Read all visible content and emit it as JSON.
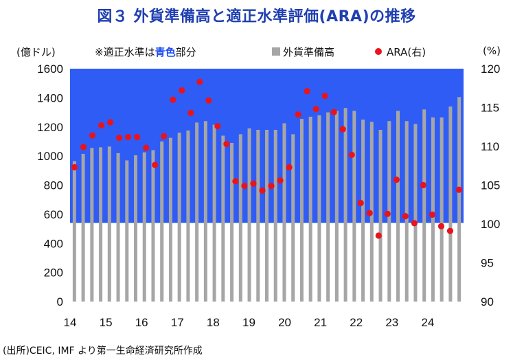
{
  "title": "図３ 外貨準備高と適正水準評価(ARA)の推移",
  "left_unit": "(億ドル)",
  "right_unit": "(%)",
  "note": {
    "prefix": "※適正水準は",
    "highlight": "青色",
    "suffix": "部分"
  },
  "source": "(出所)CEIC, IMF より第一生命経済研究所作成",
  "colors": {
    "bar": "#a6a6a6",
    "dot": "#e8141c",
    "adequate_band": "#2f5cf5",
    "title": "#1f3fb0"
  },
  "chart_data": {
    "type": "bar+scatter",
    "x_tick_labels": [
      "14",
      "15",
      "16",
      "17",
      "18",
      "19",
      "20",
      "21",
      "22",
      "23",
      "24"
    ],
    "left_axis": {
      "min": 0,
      "max": 1600,
      "ticks": [
        0,
        200,
        400,
        600,
        800,
        1000,
        1200,
        1400,
        1600
      ]
    },
    "right_axis": {
      "min": 90,
      "max": 120,
      "ticks": [
        90,
        95,
        100,
        105,
        110,
        115,
        120
      ]
    },
    "adequate_level_band": [
      540,
      1600
    ],
    "legend": [
      "外貨準備高",
      "ARA(右)"
    ],
    "series": [
      {
        "name": "外貨準備高",
        "axis": "left",
        "values": [
          965,
          1015,
          1055,
          1060,
          1065,
          1020,
          970,
          1005,
          1025,
          1040,
          1100,
          1125,
          1160,
          1175,
          1230,
          1240,
          1215,
          1140,
          1090,
          1150,
          1190,
          1180,
          1180,
          1180,
          1225,
          1150,
          1255,
          1270,
          1280,
          1300,
          1310,
          1330,
          1310,
          1250,
          1235,
          1180,
          1240,
          1310,
          1240,
          1220,
          1320,
          1265,
          1265,
          1340,
          1405
        ]
      },
      {
        "name": "ARA(右)",
        "axis": "right",
        "values": [
          107.3,
          109.9,
          111.4,
          112.7,
          113.1,
          111.1,
          111.2,
          111.2,
          109.8,
          107.6,
          111.3,
          116.0,
          117.2,
          114.3,
          118.3,
          115.9,
          112.6,
          110.3,
          105.5,
          104.9,
          105.2,
          104.3,
          104.9,
          105.6,
          107.3,
          114.1,
          117.1,
          114.8,
          116.5,
          114.4,
          112.2,
          108.9,
          102.7,
          101.4,
          98.5,
          101.3,
          105.7,
          101.0,
          100.1,
          105.0,
          101.2,
          99.7,
          99.1,
          104.4
        ]
      }
    ]
  }
}
